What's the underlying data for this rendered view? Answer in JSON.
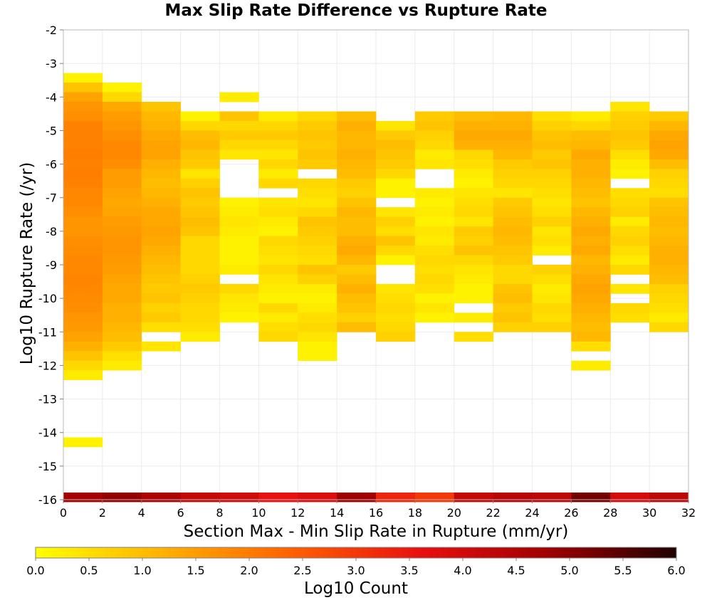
{
  "chart_data": {
    "type": "heatmap",
    "title": "Max Slip Rate Difference vs Rupture Rate",
    "xlabel": "Section Max - Min Slip Rate in Rupture (mm/yr)",
    "ylabel": "Log10 Rupture Rate (/yr)",
    "colorbar_label": "Log10 Count",
    "xlim": [
      0,
      32
    ],
    "ylim": [
      -16,
      -2
    ],
    "x_ticks": [
      0,
      2,
      4,
      6,
      8,
      10,
      12,
      14,
      16,
      18,
      20,
      22,
      24,
      26,
      28,
      30,
      32
    ],
    "y_ticks": [
      -2,
      -3,
      -4,
      -5,
      -6,
      -7,
      -8,
      -9,
      -10,
      -11,
      -12,
      -13,
      -14,
      -15,
      -16
    ],
    "colorbar_range": [
      0,
      6
    ],
    "colorbar_ticks": [
      "0.0",
      "0.5",
      "1.0",
      "1.5",
      "2.0",
      "2.5",
      "3.0",
      "3.5",
      "4.0",
      "4.5",
      "5.0",
      "5.5",
      "6.0"
    ],
    "colormap": [
      "#ffff00",
      "#ffb000",
      "#ff6000",
      "#e81010",
      "#a00000",
      "#200000"
    ],
    "grid": true,
    "bin_width": 2,
    "bin_height": 0.2857,
    "columns": [
      {
        "x0": 0,
        "y_top": -3.286,
        "values": [
          0.2,
          0.9,
          1.4,
          1.6,
          1.7,
          1.9,
          1.9,
          1.9,
          1.95,
          1.9,
          1.95,
          1.9,
          1.8,
          1.8,
          1.7,
          1.6,
          1.6,
          1.7,
          1.75,
          1.8,
          1.8,
          1.85,
          1.8,
          1.75,
          1.7,
          1.6,
          1.55,
          1.4,
          1.2,
          0.9,
          0.6,
          0.3,
          null,
          null,
          null,
          null,
          null,
          null,
          0.2
        ]
      },
      {
        "x0": 2,
        "y_top": -3.571,
        "values": [
          0.2,
          0.6,
          1.3,
          1.5,
          1.6,
          1.7,
          1.8,
          1.8,
          1.7,
          1.5,
          1.5,
          1.4,
          1.3,
          1.4,
          1.5,
          1.55,
          1.6,
          1.6,
          1.55,
          1.5,
          1.4,
          1.3,
          1.3,
          1.2,
          1.2,
          1.1,
          1.0,
          0.8,
          0.5,
          0.3
        ]
      },
      {
        "x0": 4,
        "y_top": -4.143,
        "values": [
          0.9,
          1.1,
          1.2,
          1.3,
          1.4,
          1.4,
          1.2,
          1.1,
          1.0,
          1.1,
          1.2,
          1.3,
          1.3,
          1.4,
          1.3,
          1.2,
          1.1,
          1.0,
          0.9,
          0.8,
          0.9,
          0.7,
          0.8,
          0.5,
          null,
          0.4
        ]
      },
      {
        "x0": 6,
        "y_top": -4.429,
        "values": [
          0.2,
          0.6,
          1.0,
          1.1,
          0.9,
          0.8,
          0.4,
          0.7,
          0.9,
          0.8,
          0.9,
          1.0,
          0.9,
          0.6,
          0.6,
          0.6,
          0.6,
          0.7,
          0.8,
          0.7,
          0.6,
          0.6,
          0.5,
          0.3
        ]
      },
      {
        "x0": 8,
        "y_top": -3.857,
        "values": [
          0.3,
          null,
          0.9,
          0.6,
          0.8,
          0.6,
          0.4,
          null,
          null,
          null,
          null,
          0.2,
          0.3,
          0.4,
          0.3,
          0.2,
          0.2,
          0.2,
          0.3,
          null,
          0.6,
          0.4,
          0.3,
          0.2
        ]
      },
      {
        "x0": 10,
        "y_top": -4.429,
        "values": [
          0.3,
          0.6,
          0.8,
          0.6,
          0.4,
          0.6,
          0.3,
          0.6,
          null,
          0.4,
          0.5,
          0.3,
          0.2,
          0.6,
          0.5,
          0.4,
          0.6,
          0.4,
          0.3,
          0.2,
          0.6,
          0.3,
          0.5,
          0.6
        ]
      },
      {
        "x0": 12,
        "y_top": -4.429,
        "values": [
          0.6,
          0.8,
          0.9,
          0.8,
          0.9,
          0.8,
          null,
          0.6,
          0.5,
          0.4,
          0.6,
          0.9,
          0.8,
          0.7,
          0.6,
          0.5,
          0.9,
          0.7,
          0.3,
          0.2,
          0.3,
          0.5,
          0.6,
          0.4,
          0.2,
          0.2
        ]
      },
      {
        "x0": 14,
        "y_top": -4.429,
        "values": [
          1.0,
          1.2,
          1.1,
          1.1,
          1.2,
          1.1,
          1.0,
          0.8,
          0.7,
          0.9,
          1.1,
          1.0,
          1.0,
          1.2,
          1.3,
          1.1,
          0.8,
          1.0,
          1.2,
          1.0,
          0.9,
          0.7,
          1.0
        ]
      },
      {
        "x0": 16,
        "y_top": -4.714,
        "values": [
          0.4,
          0.8,
          1.0,
          0.9,
          0.8,
          0.6,
          0.2,
          0.2,
          null,
          0.4,
          0.7,
          0.5,
          0.9,
          0.6,
          0.2,
          null,
          null,
          0.4,
          0.5,
          0.6,
          0.5,
          0.6,
          0.7
        ]
      },
      {
        "x0": 18,
        "y_top": -4.429,
        "values": [
          0.8,
          0.9,
          0.7,
          0.6,
          0.3,
          0.4,
          null,
          null,
          0.3,
          0.2,
          0.3,
          0.2,
          0.4,
          0.3,
          0.5,
          0.6,
          0.5,
          0.6,
          0.5,
          0.2,
          0.4,
          0.2
        ]
      },
      {
        "x0": 20,
        "y_top": -4.429,
        "values": [
          1.0,
          1.2,
          1.3,
          1.2,
          0.6,
          0.5,
          0.3,
          0.2,
          0.4,
          0.5,
          0.6,
          0.4,
          0.8,
          0.7,
          0.9,
          0.6,
          0.4,
          0.3,
          0.2,
          0.2,
          null,
          0.3,
          null,
          0.5
        ]
      },
      {
        "x0": 22,
        "y_top": -4.429,
        "values": [
          1.1,
          1.2,
          1.3,
          1.2,
          1.1,
          0.8,
          0.7,
          0.6,
          0.4,
          0.8,
          0.9,
          1.0,
          1.1,
          1.0,
          0.9,
          0.8,
          0.6,
          0.6,
          0.9,
          1.0,
          0.8,
          0.9,
          0.7
        ]
      },
      {
        "x0": 24,
        "y_top": -4.429,
        "values": [
          0.5,
          0.7,
          0.9,
          1.0,
          0.8,
          0.9,
          0.7,
          0.6,
          0.5,
          0.4,
          0.5,
          0.7,
          0.4,
          0.5,
          0.3,
          null,
          0.7,
          0.5,
          0.3,
          0.4,
          0.6,
          0.5,
          0.7
        ]
      },
      {
        "x0": 26,
        "y_top": -4.429,
        "values": [
          0.3,
          0.6,
          1.0,
          1.1,
          1.3,
          1.2,
          1.2,
          1.1,
          1.0,
          0.9,
          1.1,
          1.2,
          1.3,
          1.2,
          1.3,
          1.1,
          1.2,
          1.3,
          1.4,
          1.3,
          1.2,
          1.1,
          1.0,
          1.1,
          0.5,
          null,
          0.3
        ]
      },
      {
        "x0": 28,
        "y_top": -4.143,
        "values": [
          0.4,
          0.7,
          0.8,
          0.9,
          0.8,
          0.5,
          0.3,
          0.2,
          null,
          0.5,
          0.6,
          0.7,
          0.3,
          0.6,
          0.7,
          0.5,
          0.3,
          0.6,
          null,
          0.4,
          null,
          0.6,
          0.5
        ]
      },
      {
        "x0": 30,
        "y_top": -4.429,
        "values": [
          0.8,
          1.1,
          1.3,
          1.4,
          1.3,
          1.0,
          0.7,
          0.6,
          0.5,
          0.9,
          1.0,
          1.1,
          1.0,
          1.1,
          1.2,
          1.2,
          1.1,
          1.0,
          0.7,
          0.6,
          0.5,
          0.3,
          0.6
        ]
      }
    ],
    "bottom_row": {
      "y_center": -15.93,
      "values": [
        4.7,
        4.9,
        4.6,
        4.2,
        4.0,
        3.6,
        3.8,
        4.8,
        3.3,
        3.0,
        4.2,
        4.4,
        4.3,
        5.2,
        3.9,
        4.3
      ]
    }
  }
}
